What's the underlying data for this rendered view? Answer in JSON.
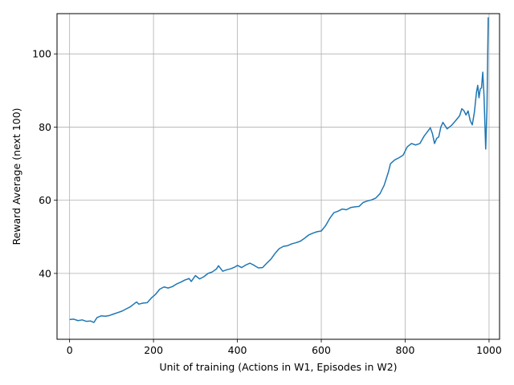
{
  "chart_data": {
    "type": "line",
    "title": "",
    "xlabel": "Unit of training (Actions in W1, Episodes in W2)",
    "ylabel": "Reward Average (next 100)",
    "xlim": [
      -30,
      1025
    ],
    "ylim": [
      22,
      111
    ],
    "xticks": [
      0,
      200,
      400,
      600,
      800,
      1000
    ],
    "yticks": [
      40,
      60,
      80,
      100
    ],
    "grid": true,
    "legend": "none",
    "series": [
      {
        "color": "#1f77b4",
        "points": [
          [
            0,
            27.4
          ],
          [
            10,
            27.5
          ],
          [
            20,
            27.1
          ],
          [
            30,
            27.3
          ],
          [
            40,
            26.9
          ],
          [
            50,
            27.0
          ],
          [
            58,
            26.6
          ],
          [
            65,
            27.9
          ],
          [
            75,
            28.4
          ],
          [
            85,
            28.3
          ],
          [
            95,
            28.5
          ],
          [
            105,
            28.9
          ],
          [
            115,
            29.3
          ],
          [
            125,
            29.7
          ],
          [
            135,
            30.3
          ],
          [
            145,
            30.9
          ],
          [
            155,
            31.8
          ],
          [
            160,
            32.2
          ],
          [
            165,
            31.6
          ],
          [
            175,
            31.9
          ],
          [
            185,
            32.0
          ],
          [
            195,
            33.3
          ],
          [
            205,
            34.3
          ],
          [
            215,
            35.7
          ],
          [
            225,
            36.3
          ],
          [
            235,
            36.0
          ],
          [
            245,
            36.4
          ],
          [
            255,
            37.1
          ],
          [
            265,
            37.6
          ],
          [
            275,
            38.2
          ],
          [
            285,
            38.6
          ],
          [
            290,
            37.8
          ],
          [
            300,
            39.4
          ],
          [
            310,
            38.5
          ],
          [
            320,
            39.1
          ],
          [
            330,
            40.0
          ],
          [
            340,
            40.4
          ],
          [
            350,
            41.2
          ],
          [
            355,
            42.1
          ],
          [
            365,
            40.6
          ],
          [
            375,
            41.0
          ],
          [
            385,
            41.3
          ],
          [
            395,
            41.8
          ],
          [
            400,
            42.2
          ],
          [
            410,
            41.6
          ],
          [
            420,
            42.3
          ],
          [
            430,
            42.8
          ],
          [
            440,
            42.2
          ],
          [
            450,
            41.5
          ],
          [
            460,
            41.6
          ],
          [
            470,
            42.8
          ],
          [
            480,
            43.9
          ],
          [
            490,
            45.5
          ],
          [
            500,
            46.8
          ],
          [
            510,
            47.4
          ],
          [
            520,
            47.6
          ],
          [
            530,
            48.1
          ],
          [
            540,
            48.4
          ],
          [
            550,
            48.8
          ],
          [
            560,
            49.6
          ],
          [
            570,
            50.5
          ],
          [
            580,
            51.0
          ],
          [
            590,
            51.4
          ],
          [
            600,
            51.6
          ],
          [
            610,
            53.0
          ],
          [
            620,
            55.0
          ],
          [
            630,
            56.6
          ],
          [
            640,
            57.0
          ],
          [
            650,
            57.6
          ],
          [
            660,
            57.4
          ],
          [
            670,
            58.0
          ],
          [
            680,
            58.2
          ],
          [
            690,
            58.3
          ],
          [
            700,
            59.4
          ],
          [
            710,
            59.8
          ],
          [
            720,
            60.1
          ],
          [
            730,
            60.6
          ],
          [
            740,
            61.8
          ],
          [
            750,
            64.1
          ],
          [
            760,
            67.7
          ],
          [
            765,
            70.0
          ],
          [
            775,
            71.0
          ],
          [
            785,
            71.6
          ],
          [
            795,
            72.3
          ],
          [
            805,
            74.6
          ],
          [
            815,
            75.5
          ],
          [
            825,
            75.1
          ],
          [
            835,
            75.5
          ],
          [
            845,
            77.5
          ],
          [
            855,
            79.0
          ],
          [
            860,
            79.8
          ],
          [
            865,
            78.2
          ],
          [
            870,
            75.5
          ],
          [
            875,
            76.9
          ],
          [
            880,
            77.3
          ],
          [
            885,
            80.0
          ],
          [
            890,
            81.3
          ],
          [
            900,
            79.5
          ],
          [
            910,
            80.4
          ],
          [
            920,
            81.7
          ],
          [
            930,
            83.1
          ],
          [
            935,
            85.0
          ],
          [
            940,
            84.5
          ],
          [
            945,
            83.3
          ],
          [
            950,
            84.4
          ],
          [
            955,
            81.8
          ],
          [
            960,
            80.6
          ],
          [
            965,
            84.0
          ],
          [
            970,
            89.5
          ],
          [
            973,
            91.4
          ],
          [
            976,
            88.0
          ],
          [
            979,
            90.4
          ],
          [
            982,
            90.7
          ],
          [
            985,
            95.0
          ],
          [
            988,
            88.5
          ],
          [
            992,
            74.0
          ],
          [
            995,
            85.0
          ],
          [
            998,
            110.0
          ]
        ]
      }
    ]
  }
}
